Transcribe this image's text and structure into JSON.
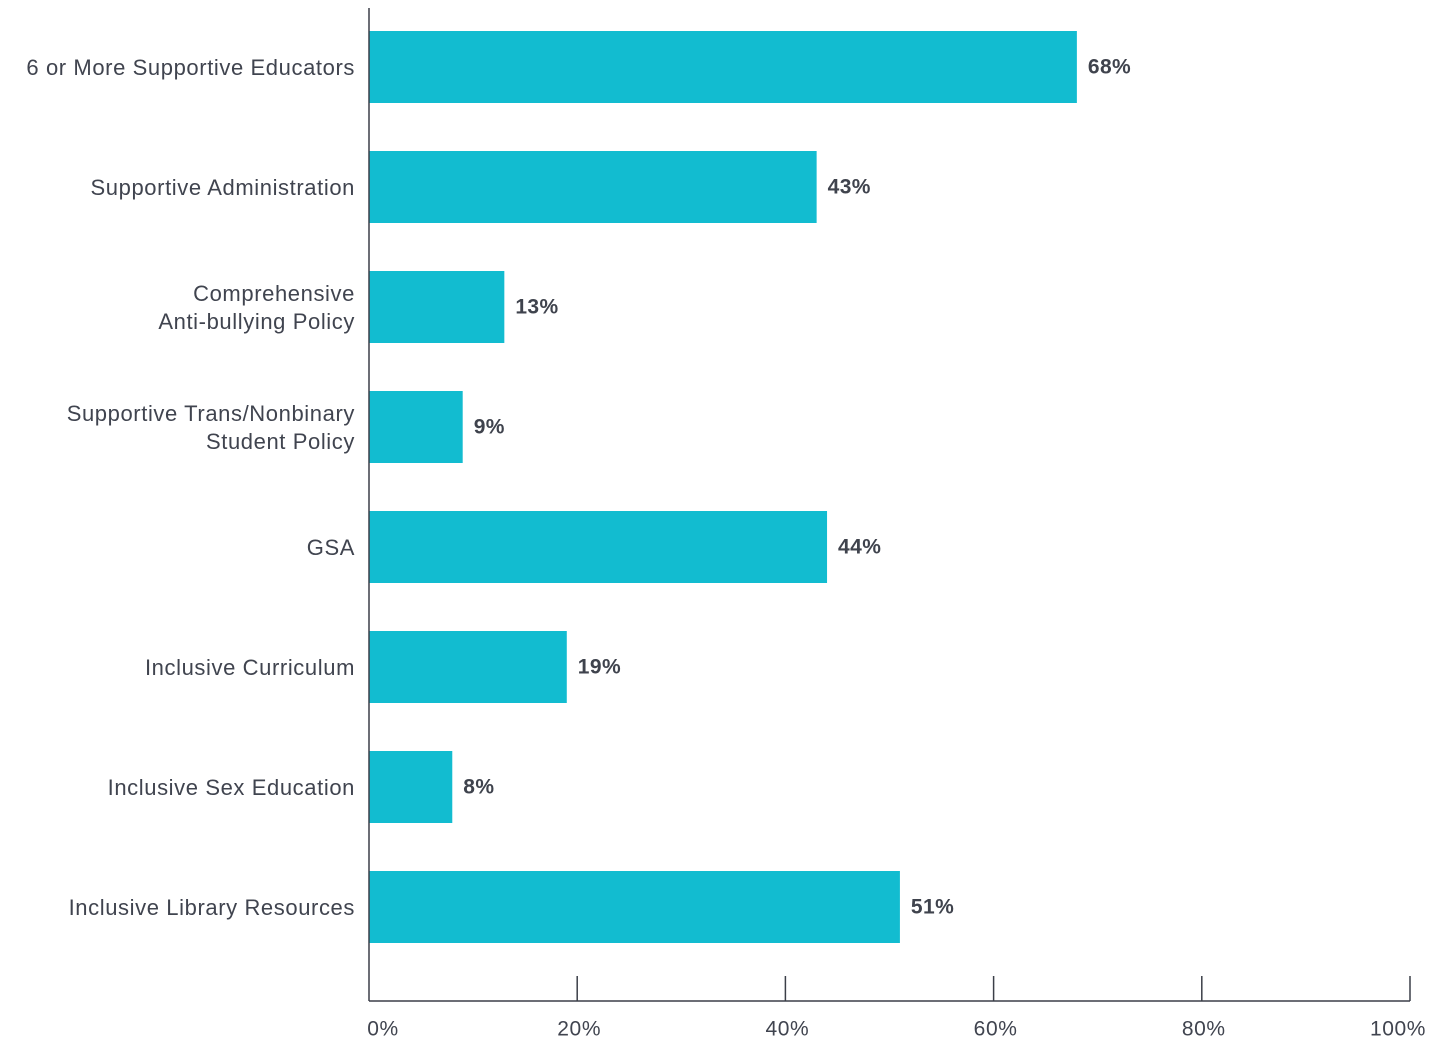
{
  "chart_data": {
    "type": "bar",
    "orientation": "horizontal",
    "categories": [
      [
        "6 or More Supportive Educators"
      ],
      [
        "Supportive Administration"
      ],
      [
        "Comprehensive",
        "Anti-bullying Policy"
      ],
      [
        "Supportive Trans/Nonbinary",
        "Student Policy"
      ],
      [
        "GSA"
      ],
      [
        "Inclusive Curriculum"
      ],
      [
        "Inclusive Sex Education"
      ],
      [
        "Inclusive Library Resources"
      ]
    ],
    "values": [
      68,
      43,
      13,
      9,
      44,
      19,
      8,
      51
    ],
    "value_labels": [
      "68%",
      "43%",
      "13%",
      "9%",
      "44%",
      "19%",
      "8%",
      "51%"
    ],
    "x_ticks": [
      0,
      20,
      40,
      60,
      80,
      100
    ],
    "x_tick_labels": [
      "0%",
      "20%",
      "40%",
      "60%",
      "80%",
      "100%"
    ],
    "xlim": [
      0,
      100
    ],
    "grid": false,
    "colors": {
      "bar": "#12bcd0",
      "axis": "#3b3f48",
      "text": "#40444f"
    }
  }
}
